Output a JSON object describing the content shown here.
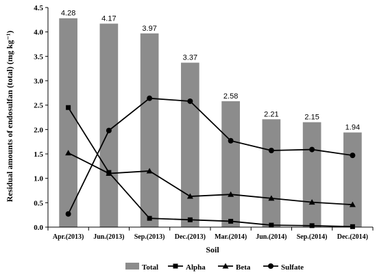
{
  "chart_data": {
    "type": "bar",
    "categories": [
      "Apr.(2013)",
      "Jun.(2013)",
      "Sep.(2013)",
      "Dec.(2013)",
      "Mar.(2014)",
      "Jun.(2014)",
      "Sep.(2014)",
      "Dec.(2014)"
    ],
    "xlabel": "Soil",
    "ylabel": "Residual amounts of endosulfan (total) (mg kg⁻¹)",
    "ylim": [
      0,
      4.5
    ],
    "yticks": [
      "0.0",
      "0.5",
      "1.0",
      "1.5",
      "2.0",
      "2.5",
      "3.0",
      "3.5",
      "4.0",
      "4.5"
    ],
    "grid": false,
    "legend_position": "bottom",
    "bar_series": {
      "name": "Total",
      "values": [
        4.28,
        4.17,
        3.97,
        3.37,
        2.58,
        2.21,
        2.15,
        1.94
      ],
      "labels": [
        "4.28",
        "4.17",
        "3.97",
        "3.37",
        "2.58",
        "2.21",
        "2.15",
        "1.94"
      ],
      "color": "#8c8c8c"
    },
    "line_series": [
      {
        "name": "Alpha",
        "marker": "square",
        "values": [
          2.45,
          1.12,
          0.18,
          0.15,
          0.12,
          0.04,
          0.03,
          0.01
        ]
      },
      {
        "name": "Beta",
        "marker": "triangle",
        "values": [
          1.52,
          1.1,
          1.15,
          0.63,
          0.67,
          0.59,
          0.51,
          0.46
        ]
      },
      {
        "name": "Sulfate",
        "marker": "circle",
        "values": [
          0.27,
          1.98,
          2.64,
          2.58,
          1.77,
          1.57,
          1.59,
          1.47
        ]
      }
    ],
    "line_color": "#000000"
  }
}
